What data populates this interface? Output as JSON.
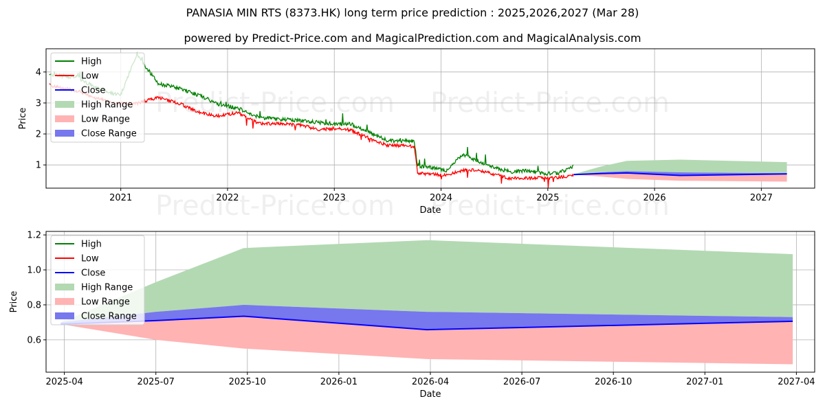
{
  "title": "PANASIA MIN RTS (8373.HK) long term price prediction : 2025,2026,2027 (Mar 28)",
  "subtitle": "powered by Predict-Price.com and MagicalPrediction.com and MagicalAnalysis.com",
  "watermark": "Predict-Price.com",
  "colors": {
    "high": "#008000",
    "low": "#ff0000",
    "close": "#0000ff",
    "high_range": "#b3d9b3",
    "low_range": "#ffb3b3",
    "close_range": "#7777ee"
  },
  "legend": [
    "High",
    "Low",
    "Close",
    "High Range",
    "Low Range",
    "Close Range"
  ],
  "chart_data": [
    {
      "type": "line",
      "name": "history-and-forecast",
      "xlabel": "Date",
      "ylabel": "Price",
      "xlim": [
        2020.3,
        2027.5
      ],
      "ylim": [
        0.25,
        4.75
      ],
      "x_ticks": [
        2021,
        2022,
        2023,
        2024,
        2025,
        2026,
        2027
      ],
      "x_tick_labels": [
        "2021",
        "2022",
        "2023",
        "2024",
        "2025",
        "2026",
        "2027"
      ],
      "y_ticks": [
        1,
        2,
        3,
        4
      ],
      "y_tick_labels": [
        "1",
        "2",
        "3",
        "4"
      ],
      "grid": true,
      "legend_position": "top-left",
      "history": {
        "x": [
          2020.33,
          2020.45,
          2020.6,
          2020.75,
          2020.9,
          2021.0,
          2021.15,
          2021.35,
          2021.55,
          2021.75,
          2021.9,
          2022.1,
          2022.3,
          2022.5,
          2022.7,
          2022.85,
          2023.0,
          2023.15,
          2023.35,
          2023.5,
          2023.65,
          2023.75,
          2023.78,
          2023.9,
          2024.05,
          2024.2,
          2024.35,
          2024.5,
          2024.65,
          2024.8,
          2024.95,
          2025.1,
          2025.24
        ],
        "high": [
          3.9,
          3.85,
          3.8,
          3.5,
          3.3,
          3.25,
          4.55,
          3.6,
          3.45,
          3.2,
          2.95,
          2.8,
          2.5,
          2.45,
          2.4,
          2.35,
          2.3,
          2.3,
          2.0,
          1.75,
          1.75,
          1.75,
          0.95,
          0.9,
          0.8,
          1.3,
          1.1,
          0.9,
          0.75,
          0.8,
          0.7,
          0.7,
          0.95
        ],
        "low": [
          3.6,
          3.5,
          3.4,
          3.2,
          3.05,
          3.0,
          3.0,
          3.2,
          3.0,
          2.7,
          2.6,
          2.7,
          2.35,
          2.35,
          2.3,
          2.15,
          2.2,
          2.15,
          1.85,
          1.65,
          1.65,
          1.6,
          0.75,
          0.72,
          0.68,
          0.85,
          0.85,
          0.72,
          0.58,
          0.6,
          0.6,
          0.62,
          0.67
        ]
      },
      "forecast": {
        "x": [
          2025.24,
          2025.5,
          2025.74,
          2026.24,
          2027.24
        ],
        "close": [
          0.69,
          0.72,
          0.74,
          0.66,
          0.71
        ],
        "high_range": [
          0.7,
          0.95,
          1.13,
          1.17,
          1.09
        ],
        "low_range": [
          0.69,
          0.62,
          0.55,
          0.49,
          0.46
        ],
        "close_upper": [
          0.7,
          0.76,
          0.8,
          0.76,
          0.73
        ],
        "close_lower": [
          0.69,
          0.71,
          0.73,
          0.66,
          0.7
        ]
      }
    },
    {
      "type": "area",
      "name": "forecast-zoom",
      "xlabel": "Date",
      "ylabel": "Price",
      "xlim": [
        2025.2,
        2027.3
      ],
      "ylim": [
        0.415,
        1.22
      ],
      "x_ticks": [
        2025.25,
        2025.5,
        2025.75,
        2026.0,
        2026.25,
        2026.5,
        2026.75,
        2027.0,
        2027.25
      ],
      "x_tick_labels": [
        "2025-04",
        "2025-07",
        "2025-10",
        "2026-01",
        "2026-04",
        "2026-07",
        "2026-10",
        "2027-01",
        "2027-04"
      ],
      "y_ticks": [
        0.6,
        0.8,
        1.0,
        1.2
      ],
      "y_tick_labels": [
        "0.6",
        "0.8",
        "1.0",
        "1.2"
      ],
      "grid": true,
      "legend_position": "top-left",
      "x": [
        2025.24,
        2025.5,
        2025.74,
        2026.24,
        2027.24
      ],
      "close": [
        0.69,
        0.71,
        0.735,
        0.658,
        0.706
      ],
      "high_range": [
        0.7,
        0.93,
        1.125,
        1.17,
        1.09
      ],
      "low_range": [
        0.69,
        0.6,
        0.55,
        0.49,
        0.46
      ],
      "close_upper": [
        0.7,
        0.76,
        0.8,
        0.76,
        0.73
      ],
      "close_lower": [
        0.69,
        0.71,
        0.735,
        0.658,
        0.706
      ]
    }
  ]
}
